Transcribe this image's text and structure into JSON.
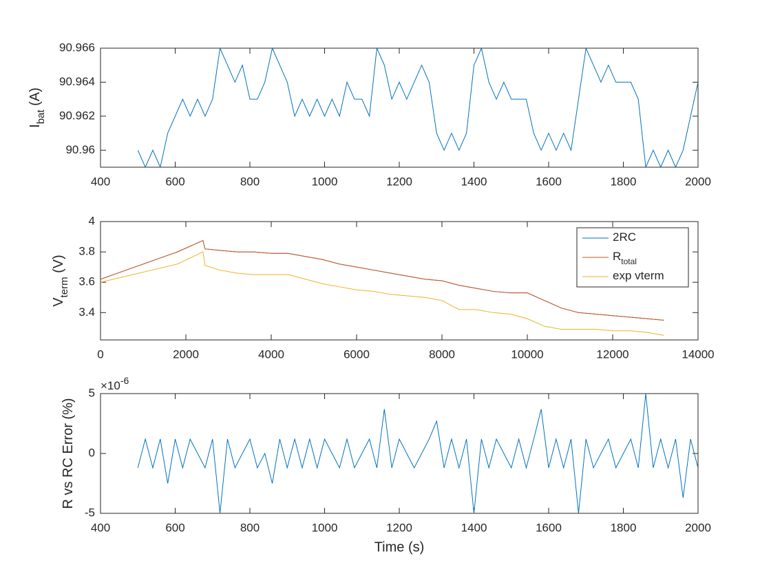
{
  "chart_data": [
    {
      "type": "line",
      "ylabel": [
        {
          "text": "I"
        },
        {
          "text": "bat",
          "sub": true
        },
        {
          "text": " (A)"
        }
      ],
      "xlim": [
        400,
        2000
      ],
      "xticks": [
        400,
        600,
        800,
        1000,
        1200,
        1400,
        1600,
        1800,
        2000
      ],
      "ylim": [
        90.959,
        90.966
      ],
      "yticks": [
        90.96,
        90.962,
        90.964,
        90.966
      ],
      "x": [
        500,
        520,
        540,
        560,
        580,
        600,
        620,
        640,
        660,
        680,
        700,
        720,
        740,
        760,
        780,
        800,
        820,
        840,
        860,
        880,
        900,
        920,
        940,
        960,
        980,
        1000,
        1020,
        1040,
        1060,
        1080,
        1100,
        1120,
        1140,
        1160,
        1180,
        1200,
        1220,
        1240,
        1260,
        1280,
        1300,
        1320,
        1340,
        1360,
        1380,
        1400,
        1420,
        1440,
        1460,
        1480,
        1500,
        1520,
        1540,
        1560,
        1580,
        1600,
        1620,
        1640,
        1660,
        1680,
        1700,
        1720,
        1740,
        1760,
        1780,
        1800,
        1820,
        1840,
        1860,
        1880,
        1900,
        1920,
        1940,
        1960,
        1980,
        2000
      ],
      "series": [
        {
          "color": "#0072bd",
          "values": [
            90.96,
            90.959,
            90.96,
            90.959,
            90.961,
            90.962,
            90.963,
            90.962,
            90.963,
            90.962,
            90.963,
            90.966,
            90.965,
            90.964,
            90.965,
            90.963,
            90.963,
            90.964,
            90.966,
            90.965,
            90.964,
            90.962,
            90.963,
            90.962,
            90.963,
            90.962,
            90.963,
            90.962,
            90.964,
            90.963,
            90.963,
            90.962,
            90.966,
            90.965,
            90.963,
            90.964,
            90.963,
            90.964,
            90.965,
            90.964,
            90.961,
            90.96,
            90.961,
            90.96,
            90.961,
            90.965,
            90.966,
            90.964,
            90.963,
            90.964,
            90.963,
            90.963,
            90.963,
            90.961,
            90.96,
            90.961,
            90.96,
            90.961,
            90.96,
            90.963,
            90.966,
            90.965,
            90.964,
            90.965,
            90.964,
            90.964,
            90.964,
            90.963,
            90.959,
            90.96,
            90.959,
            90.96,
            90.959,
            90.96,
            90.962,
            90.964
          ]
        }
      ]
    },
    {
      "type": "line",
      "ylabel": [
        {
          "text": "V"
        },
        {
          "text": "term",
          "sub": true
        },
        {
          "text": " (V)"
        }
      ],
      "xlim": [
        0,
        14000
      ],
      "xticks": [
        0,
        2000,
        4000,
        6000,
        8000,
        10000,
        12000,
        14000
      ],
      "ylim": [
        3.22,
        4
      ],
      "yticks": [
        3.4,
        3.6,
        3.8,
        4
      ],
      "legend": "upper right",
      "x": [
        0,
        600,
        1200,
        1800,
        2400,
        2450,
        2800,
        3200,
        3600,
        4000,
        4400,
        4800,
        5200,
        5600,
        6000,
        6400,
        6800,
        7200,
        7600,
        8000,
        8400,
        8800,
        9200,
        9600,
        10000,
        10400,
        10800,
        11200,
        11600,
        12000,
        12400,
        12800,
        13200
      ],
      "series": [
        {
          "name": "2RC",
          "color": "#0072bd",
          "values": [
            3.62,
            3.68,
            3.74,
            3.8,
            3.875,
            3.82,
            3.81,
            3.8,
            3.8,
            3.79,
            3.79,
            3.77,
            3.75,
            3.72,
            3.7,
            3.68,
            3.66,
            3.64,
            3.62,
            3.61,
            3.58,
            3.56,
            3.54,
            3.53,
            3.53,
            3.48,
            3.43,
            3.4,
            3.39,
            3.38,
            3.37,
            3.36,
            3.35
          ]
        },
        {
          "name": "R",
          "name_sub": "total",
          "color": "#d95319",
          "values": [
            3.62,
            3.68,
            3.74,
            3.8,
            3.875,
            3.82,
            3.81,
            3.8,
            3.8,
            3.79,
            3.79,
            3.77,
            3.75,
            3.72,
            3.7,
            3.68,
            3.66,
            3.64,
            3.62,
            3.61,
            3.58,
            3.56,
            3.54,
            3.53,
            3.53,
            3.48,
            3.43,
            3.4,
            3.39,
            3.38,
            3.37,
            3.36,
            3.35
          ]
        },
        {
          "name": "exp vterm",
          "color": "#edb120",
          "values": [
            3.6,
            3.64,
            3.68,
            3.72,
            3.8,
            3.71,
            3.68,
            3.66,
            3.65,
            3.65,
            3.65,
            3.62,
            3.59,
            3.57,
            3.55,
            3.54,
            3.52,
            3.51,
            3.5,
            3.48,
            3.42,
            3.42,
            3.4,
            3.39,
            3.36,
            3.31,
            3.29,
            3.29,
            3.29,
            3.28,
            3.28,
            3.27,
            3.25
          ]
        }
      ]
    },
    {
      "type": "line",
      "ylabel": [
        {
          "text": "R vs RC Error (%)"
        }
      ],
      "xlabel": "Time (s)",
      "y_exponent": {
        "base": "×10",
        "power": "-6"
      },
      "xlim": [
        400,
        2000
      ],
      "xticks": [
        400,
        600,
        800,
        1000,
        1200,
        1400,
        1600,
        1800,
        2000
      ],
      "ylim": [
        -5,
        5
      ],
      "yticks": [
        -5,
        0,
        5
      ],
      "x": [
        500,
        520,
        540,
        560,
        580,
        600,
        620,
        640,
        660,
        680,
        700,
        720,
        740,
        760,
        780,
        800,
        820,
        840,
        860,
        880,
        900,
        920,
        940,
        960,
        980,
        1000,
        1020,
        1040,
        1060,
        1080,
        1100,
        1120,
        1140,
        1160,
        1180,
        1200,
        1220,
        1240,
        1260,
        1280,
        1300,
        1320,
        1340,
        1360,
        1380,
        1400,
        1420,
        1440,
        1460,
        1480,
        1500,
        1520,
        1540,
        1560,
        1580,
        1600,
        1620,
        1640,
        1660,
        1680,
        1700,
        1720,
        1740,
        1760,
        1780,
        1800,
        1820,
        1840,
        1860,
        1880,
        1900,
        1920,
        1940,
        1960,
        1980,
        2000
      ],
      "series": [
        {
          "color": "#0072bd",
          "values": [
            -1.2,
            1.2,
            -1.2,
            1.2,
            -2.5,
            1.2,
            -1.2,
            1.2,
            0,
            -1.2,
            1.2,
            -5,
            1.2,
            -1.2,
            0,
            1.2,
            -1.2,
            0,
            -2.5,
            1.2,
            -1.2,
            1.2,
            -1.2,
            1.2,
            -1.2,
            1.2,
            0,
            -1.2,
            1.2,
            -1.2,
            0,
            1.2,
            -1.2,
            3.7,
            -1.2,
            1.2,
            0,
            -1.2,
            0,
            1.2,
            2.7,
            -1.2,
            1.2,
            -1.2,
            1.2,
            -5,
            1.2,
            -1.2,
            1.2,
            0,
            -1.2,
            1.2,
            -1.2,
            1.2,
            3.7,
            -1.2,
            1.2,
            -1.2,
            1.2,
            -5,
            1.2,
            -1.2,
            0,
            1.2,
            -1.2,
            0,
            1.2,
            -1.2,
            5,
            -1.2,
            1.2,
            -1.2,
            1.2,
            -3.7,
            1.2,
            -1.2
          ]
        }
      ]
    }
  ]
}
